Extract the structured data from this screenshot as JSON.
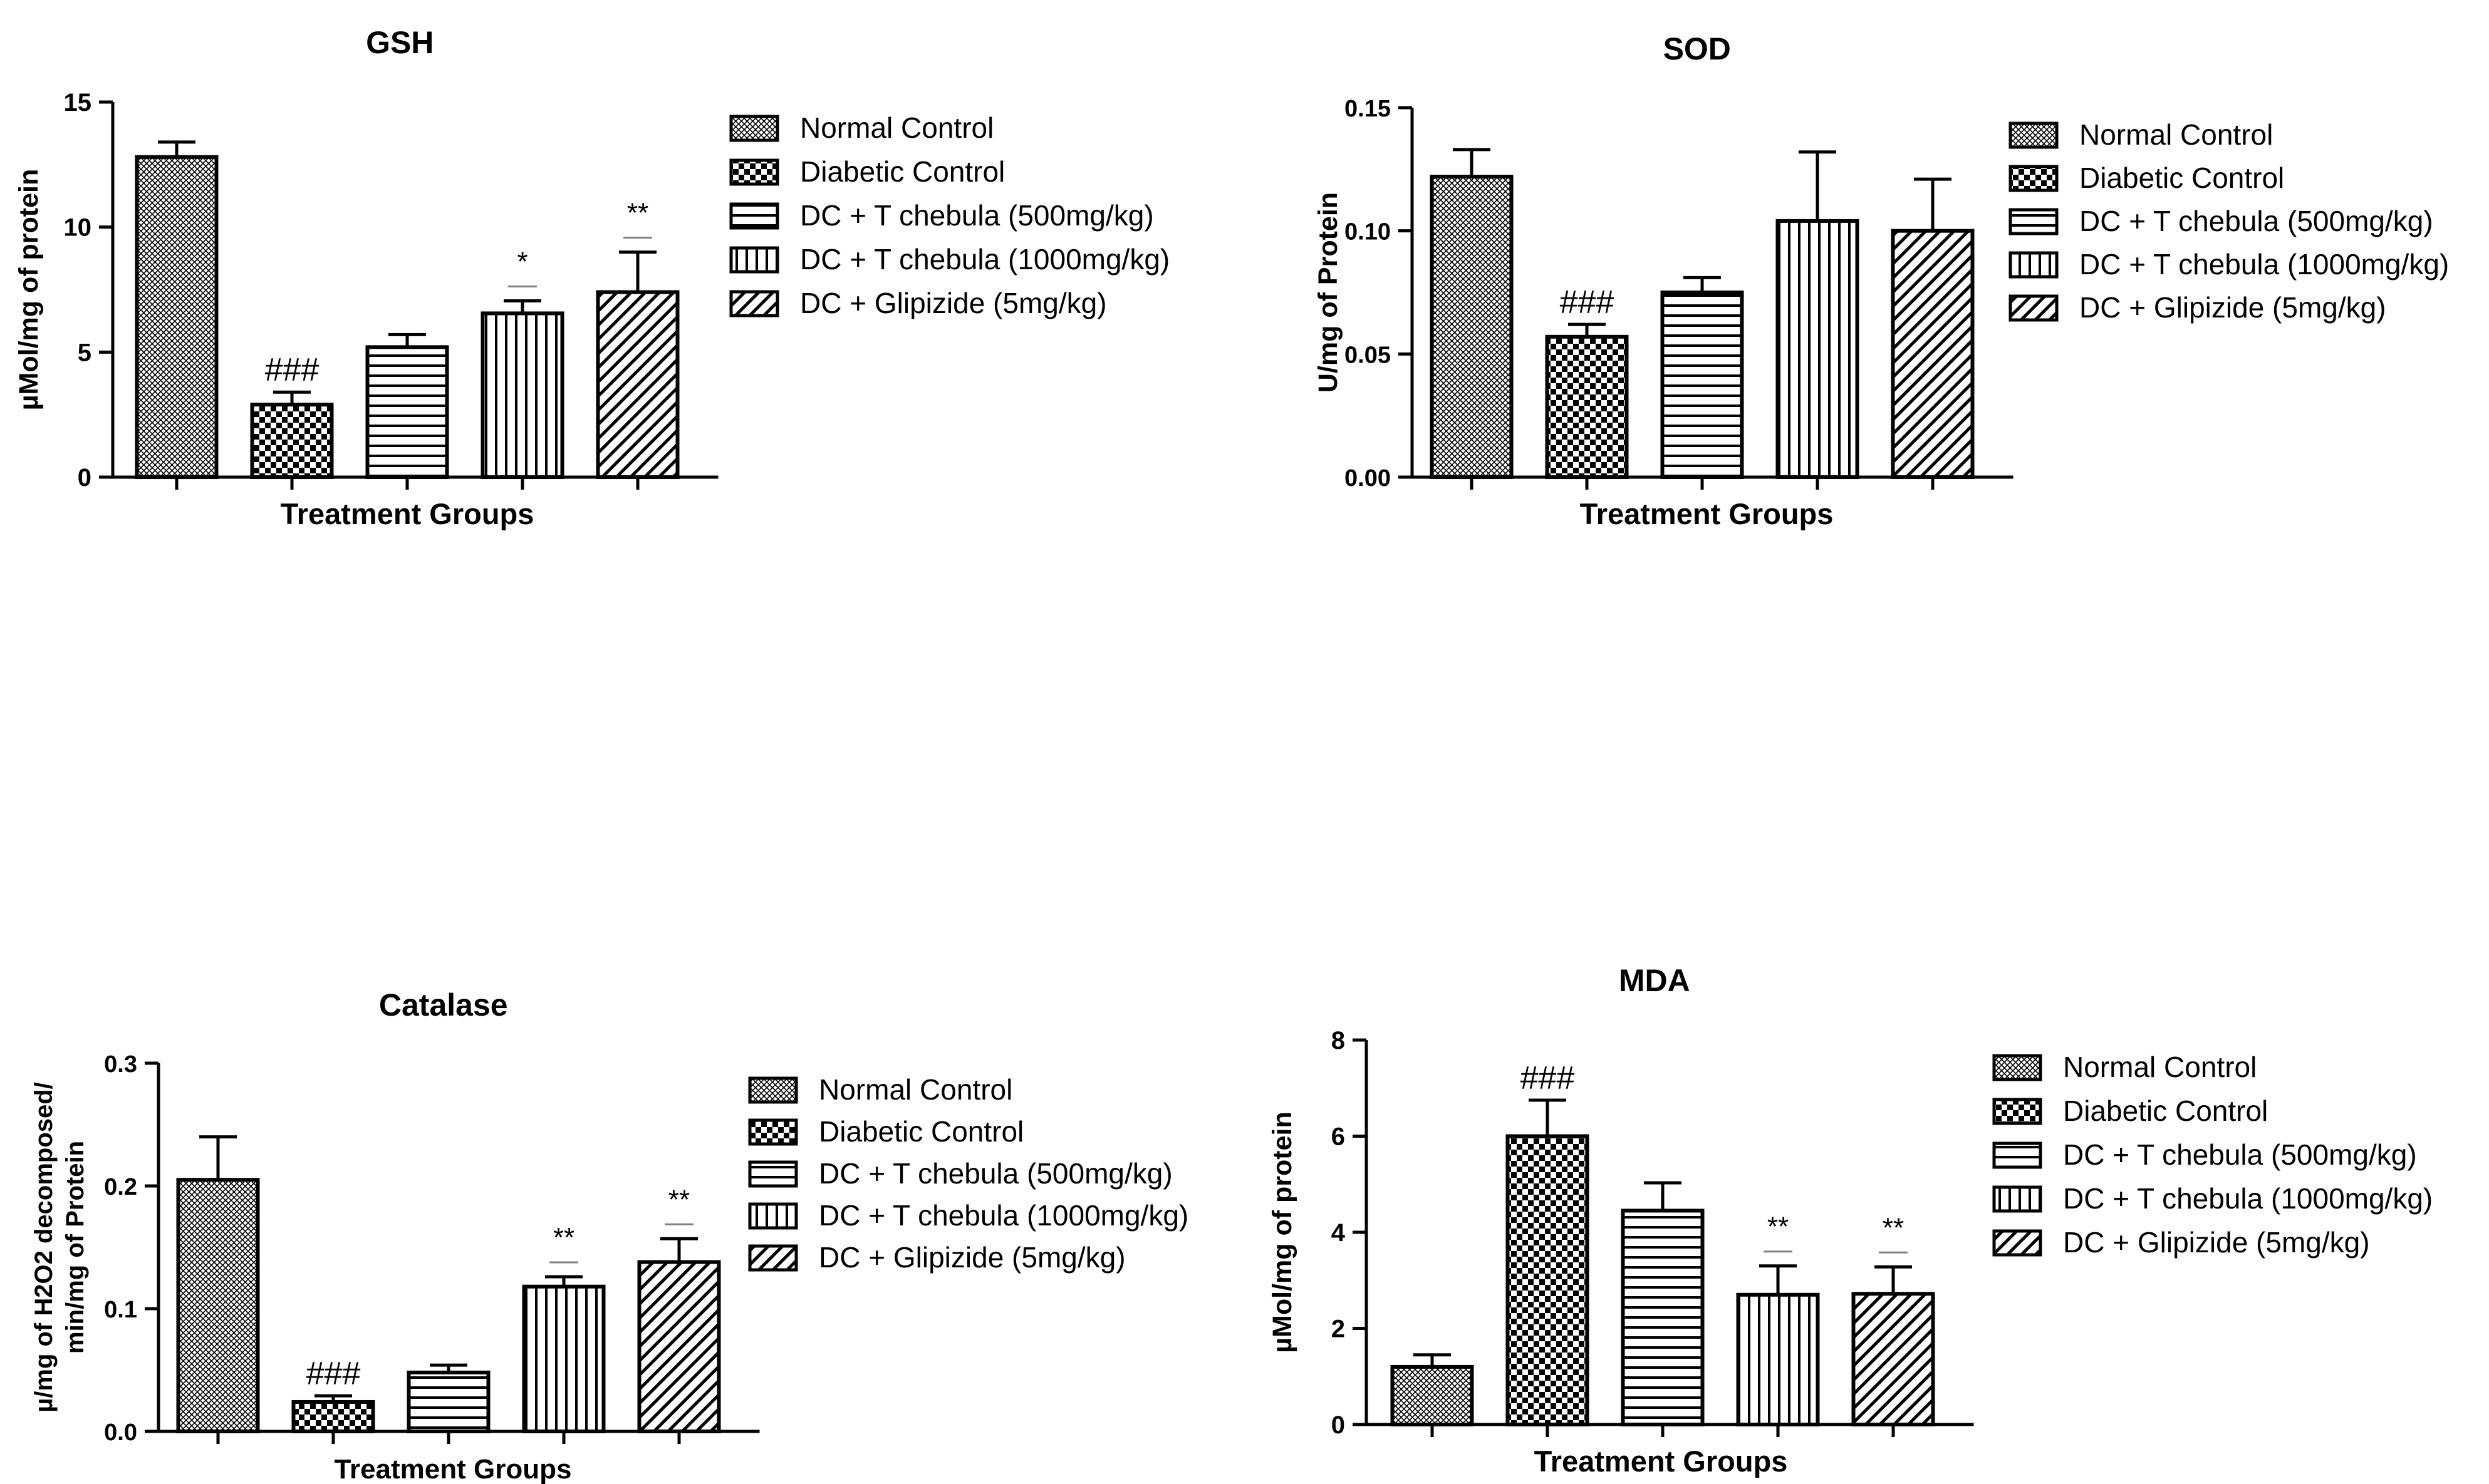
{
  "figure": {
    "patterns": {
      "Normal Control": "crosshatch",
      "Diabetic Control": "checker",
      "DC + T chebula (500mg/kg)": "horizontal",
      "DC + T chebula (1000mg/kg)": "vertical",
      "DC + Glipizide (5mg/kg)": "diagonal"
    },
    "colors": {
      "ink": "#000000",
      "background": "#ffffff",
      "significance_line": "#808080"
    }
  },
  "chart_data": [
    {
      "type": "bar",
      "title": "GSH",
      "xlabel": "Treatment Groups",
      "ylabel": "µMol/mg of protein",
      "ylim": [
        0,
        15
      ],
      "yticks": [
        "0",
        "5",
        "10",
        "15"
      ],
      "categories": [
        "Normal Control",
        "Diabetic Control",
        "DC + T chebula (500mg/kg)",
        "DC + T chebula (1000mg/kg)",
        "DC + Glipizide (5mg/kg)"
      ],
      "values": [
        12.8,
        2.9,
        5.2,
        6.55,
        7.4
      ],
      "errors": [
        0.6,
        0.5,
        0.5,
        0.5,
        1.6
      ],
      "annotations": [
        "",
        "###",
        "",
        "*",
        "**"
      ],
      "legend": [
        "Normal Control",
        "Diabetic Control",
        "DC + T chebula (500mg/kg)",
        "DC + T chebula (1000mg/kg)",
        "DC + Glipizide (5mg/kg)"
      ]
    },
    {
      "type": "bar",
      "title": "SOD",
      "xlabel": "Treatment Groups",
      "ylabel": "U/mg of Protein",
      "ylim": [
        0,
        0.15
      ],
      "yticks": [
        "0.00",
        "0.05",
        "0.10",
        "0.15"
      ],
      "categories": [
        "Normal Control",
        "Diabetic Control",
        "DC + T chebula (500mg/kg)",
        "DC + T chebula (1000mg/kg)",
        "DC + Glipizide (5mg/kg)"
      ],
      "values": [
        0.122,
        0.057,
        0.075,
        0.104,
        0.1
      ],
      "errors": [
        0.011,
        0.005,
        0.006,
        0.028,
        0.021
      ],
      "annotations": [
        "",
        "###",
        "",
        "",
        ""
      ],
      "legend": [
        "Normal Control",
        "Diabetic Control",
        "DC + T chebula (500mg/kg)",
        "DC + T chebula (1000mg/kg)",
        "DC + Glipizide (5mg/kg)"
      ]
    },
    {
      "type": "bar",
      "title": "Catalase",
      "xlabel": "Treatment Groups",
      "ylabel": [
        "µ/mg of H2O2 decomposed/",
        "min/mg of Protein"
      ],
      "ylim": [
        0,
        0.3
      ],
      "yticks": [
        "0.0",
        "0.1",
        "0.2",
        "0.3"
      ],
      "categories": [
        "Normal Control",
        "Diabetic Control",
        "DC + T chebula (500mg/kg)",
        "DC + T chebula (1000mg/kg)",
        "DC + Glipizide (5mg/kg)"
      ],
      "values": [
        0.205,
        0.024,
        0.048,
        0.118,
        0.138
      ],
      "errors": [
        0.035,
        0.005,
        0.006,
        0.008,
        0.019
      ],
      "annotations": [
        "",
        "###",
        "",
        "**",
        "**"
      ],
      "legend": [
        "Normal Control",
        "Diabetic Control",
        "DC + T chebula (500mg/kg)",
        "DC + T chebula (1000mg/kg)",
        "DC + Glipizide (5mg/kg)"
      ]
    },
    {
      "type": "bar",
      "title": "MDA",
      "xlabel": "Treatment Groups",
      "ylabel": "µMol/mg of protein",
      "ylim": [
        0,
        8
      ],
      "yticks": [
        "0",
        "2",
        "4",
        "6",
        "8"
      ],
      "categories": [
        "Normal Control",
        "Diabetic Control",
        "DC + T chebula (500mg/kg)",
        "DC + T chebula (1000mg/kg)",
        "DC + Glipizide (5mg/kg)"
      ],
      "values": [
        1.2,
        6.0,
        4.45,
        2.7,
        2.72
      ],
      "errors": [
        0.25,
        0.75,
        0.58,
        0.6,
        0.56
      ],
      "annotations": [
        "",
        "###",
        "",
        "**",
        "**"
      ],
      "legend": [
        "Normal Control",
        "Diabetic Control",
        "DC + T chebula (500mg/kg)",
        "DC + T chebula (1000mg/kg)",
        "DC + Glipizide (5mg/kg)"
      ]
    }
  ]
}
